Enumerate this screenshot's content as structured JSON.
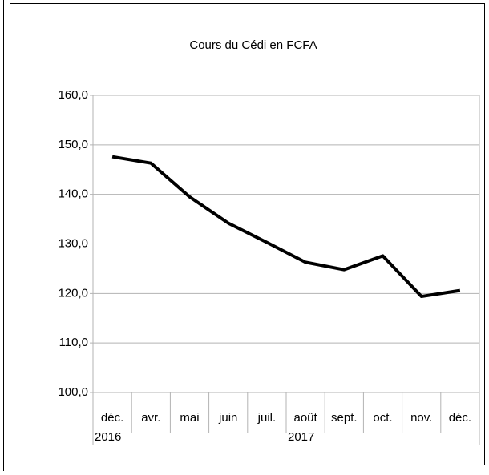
{
  "chart_data": {
    "type": "line",
    "title": "Cours du Cédi en FCFA",
    "categories": [
      "déc.",
      "avr.",
      "mai",
      "juin",
      "juil.",
      "août",
      "sept.",
      "oct.",
      "nov.",
      "déc."
    ],
    "category_groups": [
      "2016",
      null,
      null,
      null,
      null,
      "2017",
      null,
      null,
      null,
      null
    ],
    "values": [
      147.6,
      146.3,
      139.5,
      134.2,
      130.3,
      126.3,
      124.8,
      127.6,
      119.4,
      120.6
    ],
    "color": "#000000",
    "ylim": [
      100,
      160
    ],
    "yticks": [
      {
        "value": 100,
        "label": "100,0"
      },
      {
        "value": 110,
        "label": "110,0"
      },
      {
        "value": 120,
        "label": "120,0"
      },
      {
        "value": 130,
        "label": "130,0"
      },
      {
        "value": 140,
        "label": "140,0"
      },
      {
        "value": 150,
        "label": "150,0"
      },
      {
        "value": 160,
        "label": "160,0"
      }
    ],
    "grid": true
  }
}
